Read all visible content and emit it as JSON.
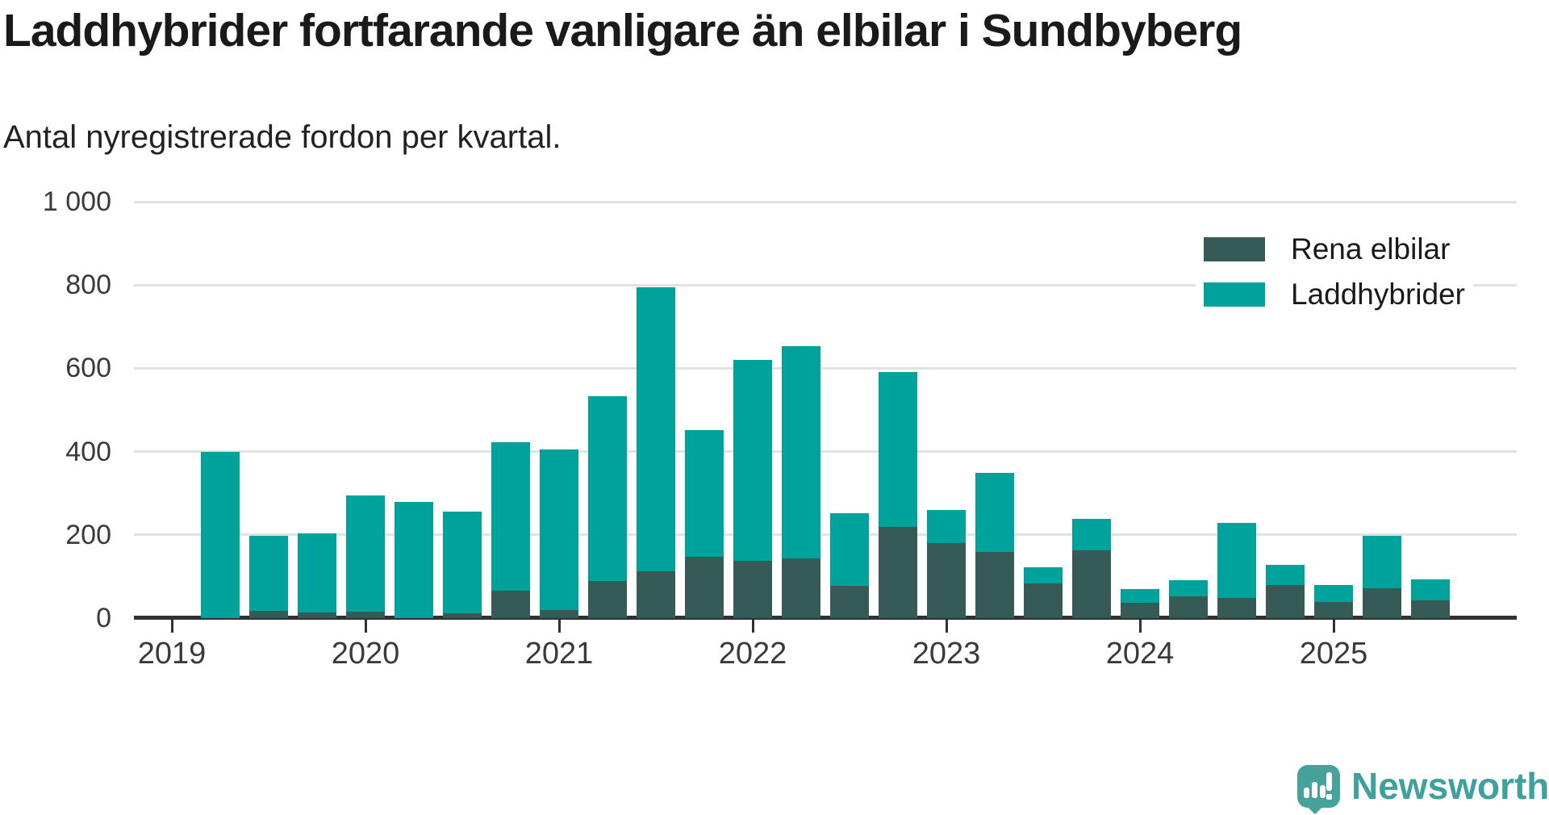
{
  "header": {
    "title": "Laddhybrider fortfarande vanligare än elbilar i Sundbyberg",
    "subtitle": "Antal nyregistrerade fordon per kvartal."
  },
  "legend": {
    "items": [
      {
        "label": "Rena elbilar",
        "color": "#365b57"
      },
      {
        "label": "Laddhybrider",
        "color": "#00a39c"
      }
    ]
  },
  "branding": {
    "logo_text": "Newsworthy",
    "logo_color": "#47a29b",
    "logo_text_color": "#3fa19c"
  },
  "colors": {
    "elbilar": "#365b57",
    "laddhybrider": "#00a39c",
    "axis": "#2e3232",
    "gridline": "#e2e2e2",
    "text": "#1a1a1a"
  },
  "chart_data": {
    "type": "bar",
    "stacked": true,
    "title": "Laddhybrider fortfarande vanligare än elbilar i Sundbyberg",
    "subtitle": "Antal nyregistrerade fordon per kvartal.",
    "xlabel": "",
    "ylabel": "",
    "ylim": [
      0,
      1000
    ],
    "grid": true,
    "legend_position": "top-right",
    "categories": [
      "2019 Q2",
      "2019 Q3",
      "2019 Q4",
      "2020 Q1",
      "2020 Q2",
      "2020 Q3",
      "2020 Q4",
      "2021 Q1",
      "2021 Q2",
      "2021 Q3",
      "2021 Q4",
      "2022 Q1",
      "2022 Q2",
      "2022 Q3",
      "2022 Q4",
      "2023 Q1",
      "2023 Q2",
      "2023 Q3",
      "2023 Q4",
      "2024 Q1",
      "2024 Q2",
      "2024 Q3",
      "2024 Q4",
      "2025 Q1",
      "2025 Q2",
      "2025 Q3"
    ],
    "x_tick_labels": [
      "2019",
      "2020",
      "2021",
      "2022",
      "2023",
      "2024",
      "2025"
    ],
    "y_ticks": [
      0,
      200,
      400,
      600,
      800,
      1000
    ],
    "y_tick_labels": [
      "0",
      "200",
      "400",
      "600",
      "800",
      "1 000"
    ],
    "series": [
      {
        "name": "Rena elbilar",
        "color": "#365b57",
        "values": [
          0,
          18,
          14,
          15,
          0,
          12,
          66,
          20,
          90,
          113,
          148,
          137,
          144,
          78,
          219,
          181,
          158,
          84,
          163,
          37,
          52,
          48,
          80,
          39,
          72,
          43
        ]
      },
      {
        "name": "Laddhybrider",
        "color": "#00a39c",
        "values": [
          400,
          180,
          190,
          280,
          279,
          244,
          356,
          385,
          443,
          682,
          304,
          483,
          509,
          174,
          373,
          79,
          189,
          38,
          75,
          33,
          39,
          181,
          48,
          40,
          126,
          50
        ]
      }
    ]
  }
}
